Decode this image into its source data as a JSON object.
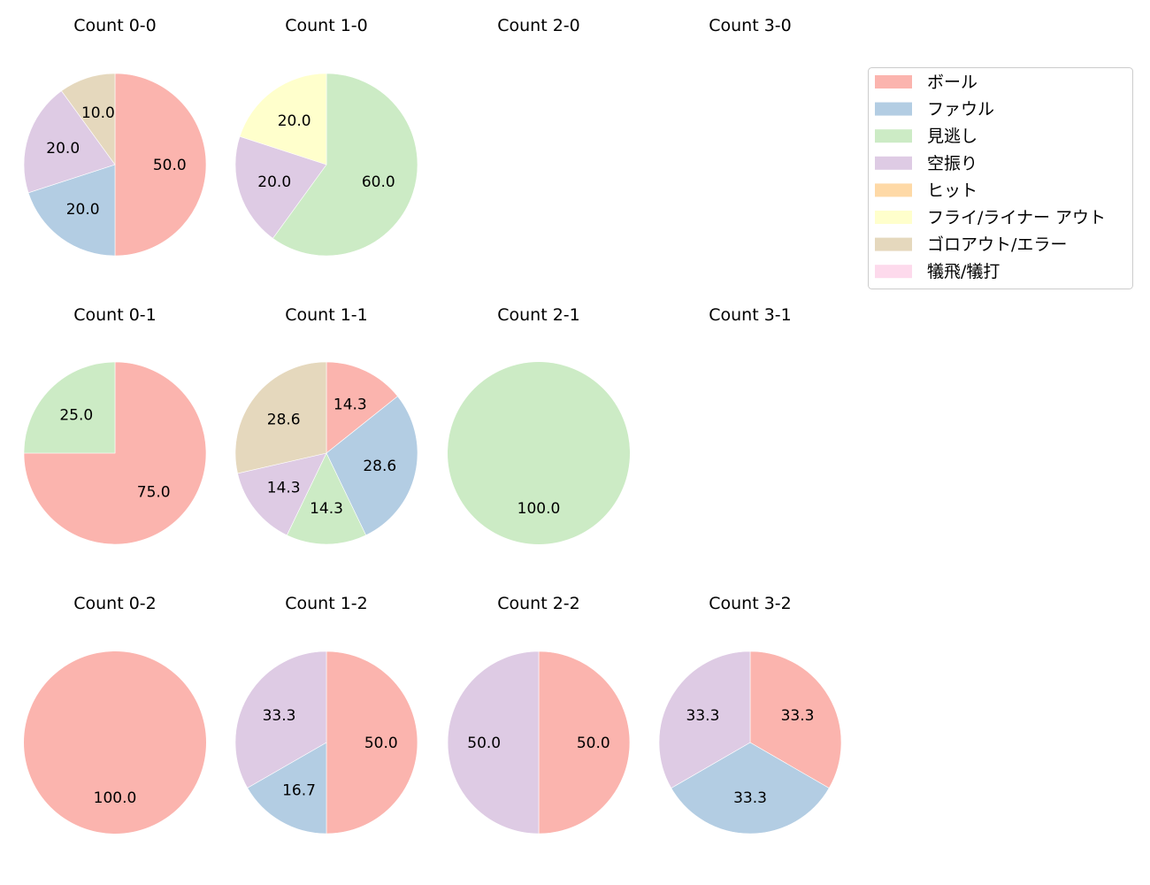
{
  "chart_data": {
    "type": "pie",
    "start_angle": 90,
    "counterclock": false,
    "legend": {
      "position": "upper right",
      "entries": [
        {
          "label": "ボール",
          "color": "#fbb4ae"
        },
        {
          "label": "ファウル",
          "color": "#b3cde3"
        },
        {
          "label": "見逃し",
          "color": "#ccebc5"
        },
        {
          "label": "空振り",
          "color": "#decbe4"
        },
        {
          "label": "ヒット",
          "color": "#fed9a6"
        },
        {
          "label": "フライ/ライナー アウト",
          "color": "#ffffcc"
        },
        {
          "label": "ゴロアウト/エラー",
          "color": "#e5d8bd"
        },
        {
          "label": "犠飛/犠打",
          "color": "#fddaec"
        }
      ]
    },
    "charts": [
      {
        "title": "Count 0-0",
        "row": 0,
        "col": 0,
        "slices": [
          {
            "category": "ボール",
            "value": 50.0
          },
          {
            "category": "ファウル",
            "value": 20.0
          },
          {
            "category": "空振り",
            "value": 20.0
          },
          {
            "category": "ゴロアウト/エラー",
            "value": 10.0
          }
        ]
      },
      {
        "title": "Count 1-0",
        "row": 0,
        "col": 1,
        "slices": [
          {
            "category": "見逃し",
            "value": 60.0
          },
          {
            "category": "空振り",
            "value": 20.0
          },
          {
            "category": "フライ/ライナー アウト",
            "value": 20.0
          }
        ]
      },
      {
        "title": "Count 2-0",
        "row": 0,
        "col": 2,
        "slices": []
      },
      {
        "title": "Count 3-0",
        "row": 0,
        "col": 3,
        "slices": []
      },
      {
        "title": "Count 0-1",
        "row": 1,
        "col": 0,
        "slices": [
          {
            "category": "ボール",
            "value": 75.0
          },
          {
            "category": "見逃し",
            "value": 25.0
          }
        ]
      },
      {
        "title": "Count 1-1",
        "row": 1,
        "col": 1,
        "slices": [
          {
            "category": "ボール",
            "value": 14.3
          },
          {
            "category": "ファウル",
            "value": 28.6
          },
          {
            "category": "見逃し",
            "value": 14.3
          },
          {
            "category": "空振り",
            "value": 14.3
          },
          {
            "category": "ゴロアウト/エラー",
            "value": 28.6
          }
        ]
      },
      {
        "title": "Count 2-1",
        "row": 1,
        "col": 2,
        "slices": [
          {
            "category": "見逃し",
            "value": 100.0
          }
        ]
      },
      {
        "title": "Count 3-1",
        "row": 1,
        "col": 3,
        "slices": []
      },
      {
        "title": "Count 0-2",
        "row": 2,
        "col": 0,
        "slices": [
          {
            "category": "ボール",
            "value": 100.0
          }
        ]
      },
      {
        "title": "Count 1-2",
        "row": 2,
        "col": 1,
        "slices": [
          {
            "category": "ボール",
            "value": 50.0
          },
          {
            "category": "ファウル",
            "value": 16.7
          },
          {
            "category": "空振り",
            "value": 33.3
          }
        ]
      },
      {
        "title": "Count 2-2",
        "row": 2,
        "col": 2,
        "slices": [
          {
            "category": "ボール",
            "value": 50.0
          },
          {
            "category": "空振り",
            "value": 50.0
          }
        ]
      },
      {
        "title": "Count 3-2",
        "row": 2,
        "col": 3,
        "slices": [
          {
            "category": "ボール",
            "value": 33.3
          },
          {
            "category": "ファウル",
            "value": 33.3
          },
          {
            "category": "空振り",
            "value": 33.3
          }
        ]
      }
    ]
  }
}
